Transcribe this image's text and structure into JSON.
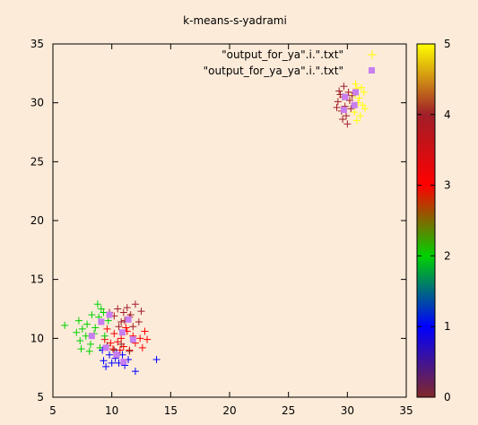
{
  "background_color": "#fdebd9",
  "chart_data": {
    "type": "scatter",
    "title": "k-means-s-yadrami",
    "xlabel": "",
    "ylabel": "",
    "xlim": [
      5,
      35
    ],
    "ylim": [
      5,
      35
    ],
    "xticks": [
      5,
      10,
      15,
      20,
      25,
      30,
      35
    ],
    "yticks": [
      5,
      10,
      15,
      20,
      25,
      30,
      35
    ],
    "grid": false,
    "legend_position": "top-right",
    "colorbar": {
      "min": 0,
      "max": 5,
      "ticks": [
        0,
        1,
        2,
        3,
        4,
        5
      ],
      "palette": "rgbformulae 30,31,32"
    },
    "series": [
      {
        "name": "\"output_for_ya\".i.\".txt\"",
        "marker": "plus",
        "legend_color": "#ffff00",
        "points": [
          [
            29.3,
            31.0,
            4
          ],
          [
            29.6,
            30.5,
            4
          ],
          [
            30.1,
            30.9,
            4
          ],
          [
            29.2,
            30.1,
            4
          ],
          [
            29.8,
            29.7,
            4
          ],
          [
            30.2,
            30.2,
            4
          ],
          [
            29.5,
            29.3,
            4
          ],
          [
            29.9,
            28.9,
            4
          ],
          [
            30.0,
            28.2,
            4
          ],
          [
            29.4,
            30.7,
            4
          ],
          [
            30.3,
            29.5,
            4
          ],
          [
            29.7,
            31.4,
            4
          ],
          [
            29.1,
            29.6,
            4
          ],
          [
            30.4,
            30.6,
            4
          ],
          [
            29.6,
            28.6,
            4
          ],
          [
            30.8,
            31.2,
            5
          ],
          [
            31.0,
            30.4,
            5
          ],
          [
            31.3,
            29.8,
            5
          ],
          [
            30.6,
            29.2,
            5
          ],
          [
            31.1,
            28.9,
            5
          ],
          [
            30.9,
            30.0,
            5
          ],
          [
            31.4,
            30.9,
            5
          ],
          [
            30.7,
            31.6,
            5
          ],
          [
            31.5,
            29.5,
            5
          ],
          [
            30.8,
            28.5,
            5
          ],
          [
            30.6,
            30.7,
            5
          ],
          [
            31.2,
            31.3,
            5
          ],
          [
            10.5,
            12.5,
            4
          ],
          [
            11.0,
            12.2,
            4
          ],
          [
            11.5,
            11.8,
            4
          ],
          [
            10.8,
            11.4,
            4
          ],
          [
            12.0,
            12.9,
            4
          ],
          [
            11.8,
            11.0,
            4
          ],
          [
            10.2,
            11.9,
            4
          ],
          [
            11.3,
            12.6,
            4
          ],
          [
            12.3,
            11.4,
            4
          ],
          [
            10.6,
            11.0,
            4
          ],
          [
            11.1,
            11.5,
            4
          ],
          [
            9.8,
            12.2,
            4
          ],
          [
            12.5,
            12.3,
            4
          ],
          [
            11.6,
            12.0,
            4
          ],
          [
            9.6,
            10.8,
            3
          ],
          [
            10.2,
            10.4,
            3
          ],
          [
            10.8,
            10.0,
            3
          ],
          [
            11.3,
            10.6,
            3
          ],
          [
            11.8,
            10.2,
            3
          ],
          [
            12.4,
            10.0,
            3
          ],
          [
            10.5,
            9.7,
            3
          ],
          [
            11.0,
            9.3,
            3
          ],
          [
            9.9,
            9.6,
            3
          ],
          [
            12.0,
            9.6,
            3
          ],
          [
            11.5,
            9.0,
            3
          ],
          [
            12.6,
            9.2,
            3
          ],
          [
            10.7,
            9.0,
            3
          ],
          [
            13.0,
            9.9,
            3
          ],
          [
            9.4,
            9.9,
            3
          ],
          [
            11.2,
            10.9,
            3
          ],
          [
            10.1,
            9.1,
            3
          ],
          [
            12.8,
            10.6,
            3
          ],
          [
            6.0,
            11.1,
            2
          ],
          [
            7.2,
            11.5,
            2
          ],
          [
            7.5,
            10.8,
            2
          ],
          [
            7.8,
            10.2,
            2
          ],
          [
            7.3,
            9.8,
            2
          ],
          [
            8.2,
            9.5,
            2
          ],
          [
            8.6,
            10.9,
            2
          ],
          [
            8.9,
            11.8,
            2
          ],
          [
            9.1,
            12.5,
            2
          ],
          [
            8.8,
            12.9,
            2
          ],
          [
            8.3,
            12.0,
            2
          ],
          [
            7.9,
            11.2,
            2
          ],
          [
            9.4,
            10.2,
            2
          ],
          [
            8.1,
            8.9,
            2
          ],
          [
            7.4,
            9.1,
            2
          ],
          [
            9.7,
            11.5,
            2
          ],
          [
            8.5,
            10.4,
            2
          ],
          [
            9.0,
            9.2,
            2
          ],
          [
            7.0,
            10.5,
            2
          ],
          [
            9.3,
            12.2,
            2
          ],
          [
            9.2,
            9.0,
            1
          ],
          [
            9.8,
            8.6,
            1
          ],
          [
            10.3,
            8.3,
            1
          ],
          [
            10.6,
            7.9,
            1
          ],
          [
            9.5,
            7.6,
            1
          ],
          [
            10.9,
            8.6,
            1
          ],
          [
            11.4,
            8.2,
            1
          ],
          [
            12.0,
            7.2,
            1
          ],
          [
            13.8,
            8.2,
            1
          ],
          [
            10.0,
            7.9,
            1
          ],
          [
            9.3,
            8.1,
            1
          ],
          [
            11.1,
            7.7,
            1
          ],
          [
            10.4,
            8.8,
            1
          ],
          [
            9.6,
            9.4,
            0
          ],
          [
            10.2,
            9.0,
            0
          ],
          [
            10.8,
            9.5,
            0
          ],
          [
            11.5,
            8.9,
            0
          ]
        ]
      },
      {
        "name": "\"output_for_ya_ya\".i.\".txt\"",
        "marker": "square",
        "color": "#c77ef0",
        "points": [
          [
            29.7,
            29.4
          ],
          [
            30.6,
            29.8
          ],
          [
            30.7,
            30.9
          ],
          [
            29.8,
            30.5
          ],
          [
            8.3,
            10.2
          ],
          [
            9.1,
            11.4
          ],
          [
            9.5,
            9.2
          ],
          [
            10.4,
            8.6
          ],
          [
            11.4,
            11.6
          ],
          [
            11.8,
            9.9
          ],
          [
            10.9,
            10.5
          ],
          [
            9.8,
            12.0
          ],
          [
            11.0,
            8.0
          ]
        ]
      }
    ]
  }
}
